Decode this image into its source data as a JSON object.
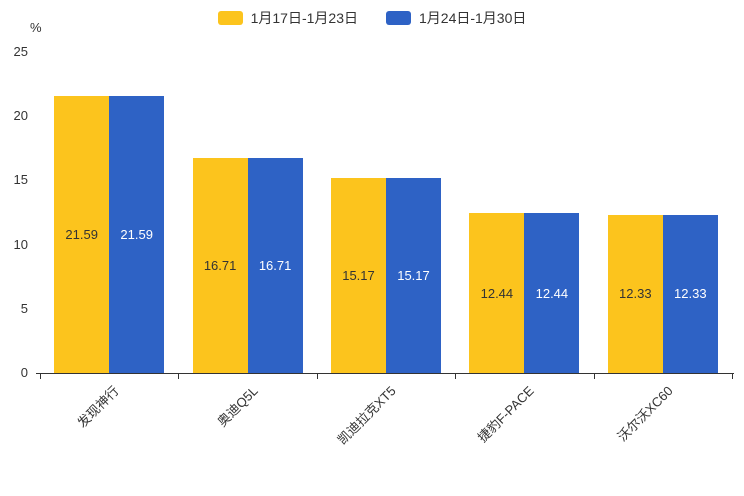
{
  "chart_data": {
    "type": "bar",
    "categories": [
      "发现神行",
      "奥迪Q5L",
      "凯迪拉克XT5",
      "捷豹F-PACE",
      "沃尔沃XC60"
    ],
    "series": [
      {
        "name": "1月17日-1月23日",
        "color": "#fcc41d",
        "label_color": "#333333",
        "values": [
          21.59,
          16.71,
          15.17,
          12.44,
          12.33
        ]
      },
      {
        "name": "1月24日-1月30日",
        "color": "#2e62c5",
        "label_color": "#ffffff",
        "values": [
          21.59,
          16.71,
          15.17,
          12.44,
          12.33
        ]
      }
    ],
    "title": "",
    "xlabel": "",
    "ylabel": "%",
    "ylim": [
      0,
      25
    ],
    "yticks": [
      0,
      5,
      10,
      15,
      20,
      25
    ],
    "grid": false,
    "legend_position": "top"
  }
}
